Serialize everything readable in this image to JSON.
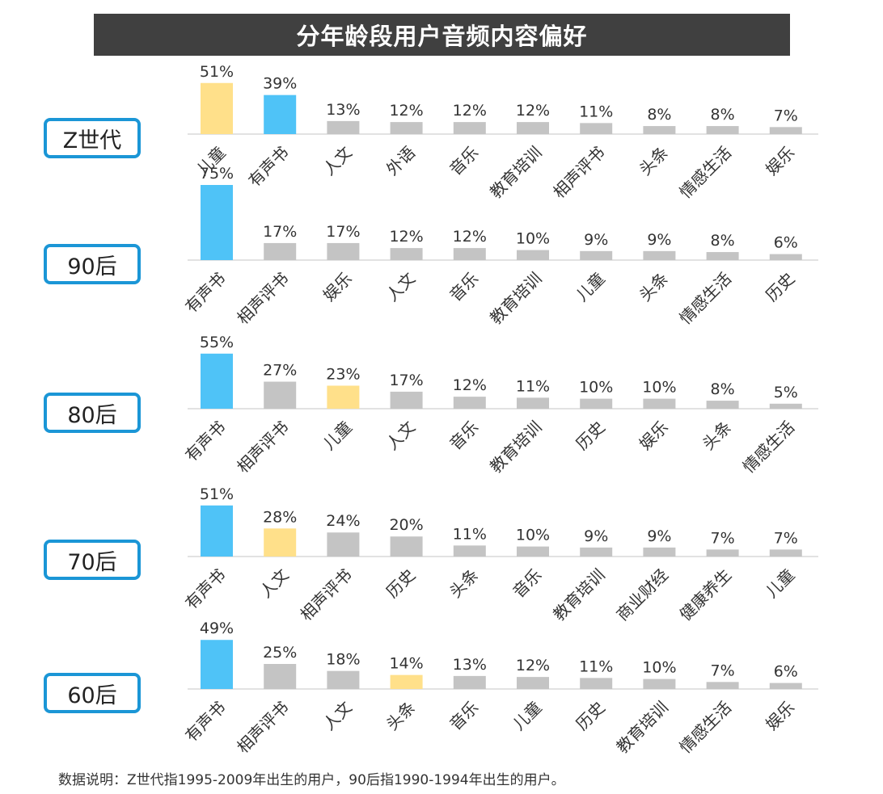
{
  "title": "分年龄段用户音频内容偏好",
  "footnote": "数据说明：Z世代指1995-2009年出生的用户，90后指1990-1994年出生的用户。",
  "colors": {
    "highlight_blue": "#4fc3f7",
    "highlight_yellow": "#ffe08a",
    "gray": "#c4c4c4",
    "border": "#1b96d6",
    "title_bg": "#404040"
  },
  "chart_data": [
    {
      "type": "bar",
      "group": "Z世代",
      "categories": [
        "儿童",
        "有声书",
        "人文",
        "外语",
        "音乐",
        "教育培训",
        "相声评书",
        "头条",
        "情感生活",
        "娱乐"
      ],
      "values": [
        51,
        39,
        13,
        12,
        12,
        12,
        11,
        8,
        8,
        7
      ],
      "labels": [
        "51%",
        "39%",
        "13%",
        "12%",
        "12%",
        "12%",
        "11%",
        "8%",
        "8%",
        "7%"
      ],
      "colors": [
        "yellow",
        "blue",
        "gray",
        "gray",
        "gray",
        "gray",
        "gray",
        "gray",
        "gray",
        "gray"
      ]
    },
    {
      "type": "bar",
      "group": "90后",
      "categories": [
        "有声书",
        "相声评书",
        "娱乐",
        "人文",
        "音乐",
        "教育培训",
        "儿童",
        "头条",
        "情感生活",
        "历史"
      ],
      "values": [
        75,
        17,
        17,
        12,
        12,
        10,
        9,
        9,
        8,
        6
      ],
      "labels": [
        "75%",
        "17%",
        "17%",
        "12%",
        "12%",
        "10%",
        "9%",
        "9%",
        "8%",
        "6%"
      ],
      "colors": [
        "blue",
        "gray",
        "gray",
        "gray",
        "gray",
        "gray",
        "gray",
        "gray",
        "gray",
        "gray"
      ]
    },
    {
      "type": "bar",
      "group": "80后",
      "categories": [
        "有声书",
        "相声评书",
        "儿童",
        "人文",
        "音乐",
        "教育培训",
        "历史",
        "娱乐",
        "头条",
        "情感生活"
      ],
      "values": [
        55,
        27,
        23,
        17,
        12,
        11,
        10,
        10,
        8,
        5
      ],
      "labels": [
        "55%",
        "27%",
        "23%",
        "17%",
        "12%",
        "11%",
        "10%",
        "10%",
        "8%",
        "5%"
      ],
      "colors": [
        "blue",
        "gray",
        "yellow",
        "gray",
        "gray",
        "gray",
        "gray",
        "gray",
        "gray",
        "gray"
      ]
    },
    {
      "type": "bar",
      "group": "70后",
      "categories": [
        "有声书",
        "人文",
        "相声评书",
        "历史",
        "头条",
        "音乐",
        "教育培训",
        "商业财经",
        "健康养生",
        "儿童"
      ],
      "values": [
        51,
        28,
        24,
        20,
        11,
        10,
        9,
        9,
        7,
        7
      ],
      "labels": [
        "51%",
        "28%",
        "24%",
        "20%",
        "11%",
        "10%",
        "9%",
        "9%",
        "7%",
        "7%"
      ],
      "colors": [
        "blue",
        "yellow",
        "gray",
        "gray",
        "gray",
        "gray",
        "gray",
        "gray",
        "gray",
        "gray"
      ]
    },
    {
      "type": "bar",
      "group": "60后",
      "categories": [
        "有声书",
        "相声评书",
        "人文",
        "头条",
        "音乐",
        "儿童",
        "历史",
        "教育培训",
        "情感生活",
        "娱乐"
      ],
      "values": [
        49,
        25,
        18,
        14,
        13,
        12,
        11,
        10,
        7,
        6
      ],
      "labels": [
        "49%",
        "25%",
        "18%",
        "14%",
        "13%",
        "12%",
        "11%",
        "10%",
        "7%",
        "6%"
      ],
      "colors": [
        "blue",
        "gray",
        "gray",
        "yellow",
        "gray",
        "gray",
        "gray",
        "gray",
        "gray",
        "gray"
      ]
    }
  ]
}
